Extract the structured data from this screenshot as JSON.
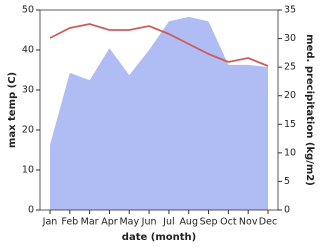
{
  "chart_data": {
    "type": "line",
    "x_label": "date (month)",
    "y_label": "max temp (C)",
    "y2_label": "med. precipitation (kg/m2)",
    "categories": [
      "Jan",
      "Feb",
      "Mar",
      "Apr",
      "May",
      "Jun",
      "Jul",
      "Aug",
      "Sep",
      "Oct",
      "Nov",
      "Dec"
    ],
    "series": [
      {
        "name": "max temp",
        "color": "#cd5c5c",
        "values": [
          43,
          45.5,
          46.5,
          45,
          45,
          46,
          44,
          41.5,
          39,
          37,
          38,
          36
        ]
      },
      {
        "name": "precipitation",
        "color": "#b0bcf4",
        "axis": "y2",
        "values": [
          11.4,
          24,
          22.7,
          28.3,
          23.6,
          28,
          33,
          33.8,
          33,
          25.4,
          25.4,
          25
        ]
      }
    ],
    "ylim": [
      0,
      50
    ],
    "yticks": [
      0,
      10,
      20,
      30,
      40,
      50
    ],
    "y2lim": [
      0,
      35
    ],
    "y2ticks": [
      0,
      5,
      10,
      15,
      20,
      25,
      30,
      35
    ]
  }
}
